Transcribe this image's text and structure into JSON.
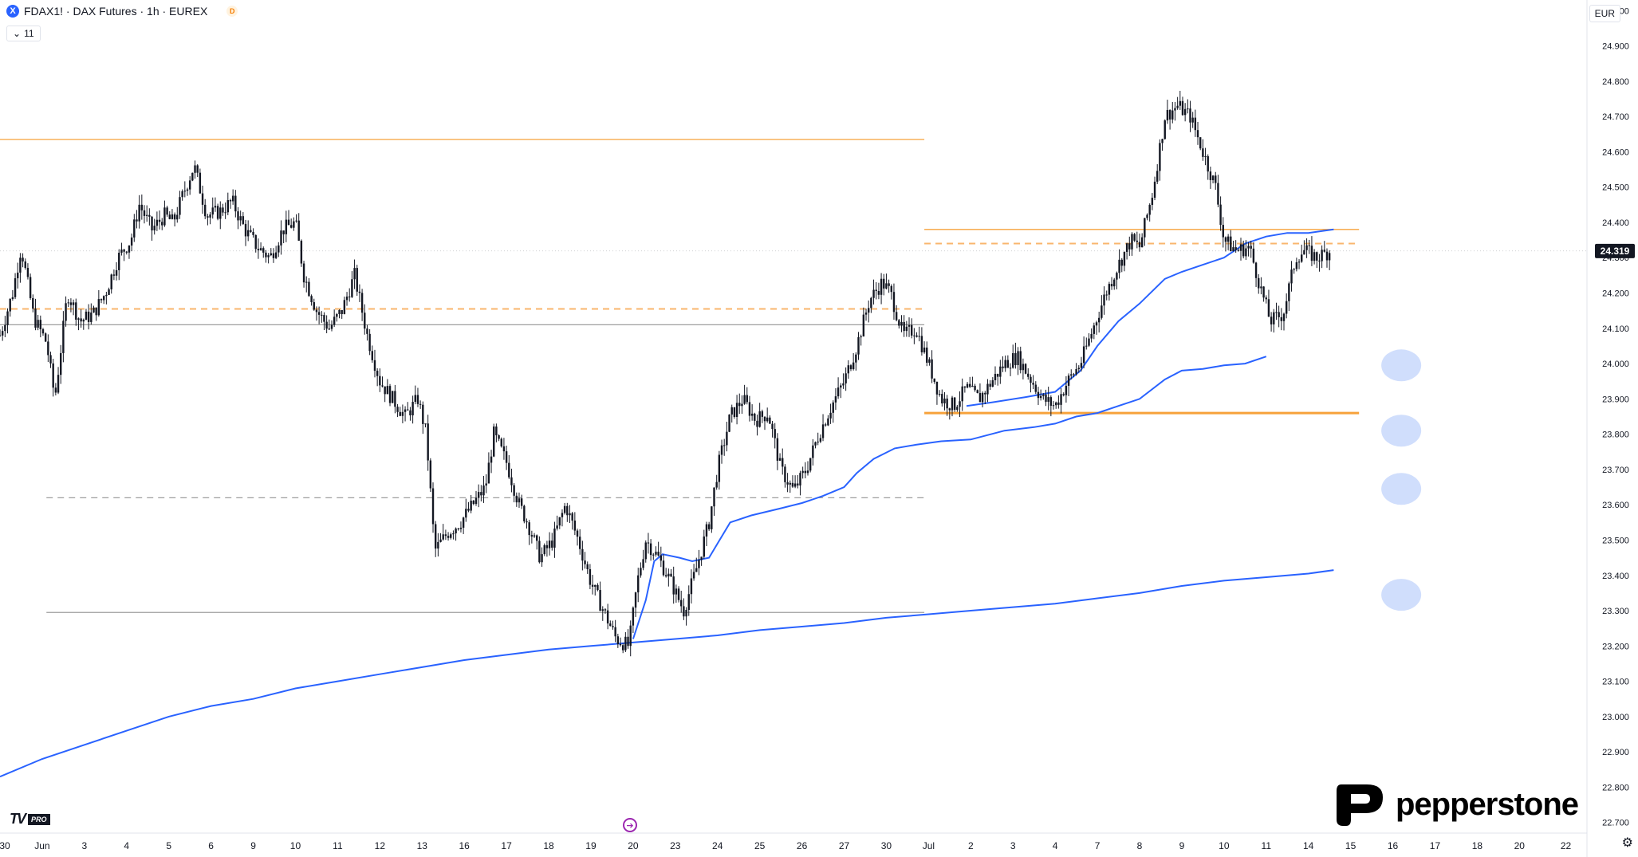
{
  "header": {
    "symbol_icon_letter": "X",
    "title": "FDAX1! · DAX Futures · 1h · EUREX",
    "delay_badge": "D",
    "indicator_count": "11",
    "currency": "EUR"
  },
  "branding": {
    "tradingview": "TV",
    "tradingview_tier": "PRO",
    "broker": "pepperstone"
  },
  "colors": {
    "candle": "#131722",
    "orange_level": "#f7a23b",
    "orange_dashed": "#f9b66d",
    "gray_level": "#9e9e9e",
    "blue_ma": "#2962ff",
    "circle_fill": "#c8d8fb",
    "price_badge": "#131722"
  },
  "chart_data": {
    "type": "candlestick",
    "instrument": "FDAX1!",
    "timeframe": "1h",
    "y_ticks": [
      22700,
      22800,
      22900,
      23000,
      23100,
      23200,
      23300,
      23400,
      23500,
      23600,
      23700,
      23800,
      23900,
      24000,
      24100,
      24200,
      24300,
      24400,
      24500,
      24600,
      24700,
      24800,
      24900,
      25000
    ],
    "y_tick_labels": [
      "22.700",
      "22.800",
      "22.900",
      "23.000",
      "23.100",
      "23.200",
      "23.300",
      "23.400",
      "23.500",
      "23.600",
      "23.700",
      "23.800",
      "23.900",
      "24.000",
      "24.100",
      "24.200",
      "24.300",
      "24.400",
      "24.500",
      "24.600",
      "24.700",
      "24.800",
      "24.900",
      "25.000"
    ],
    "ylim": [
      22670,
      25030
    ],
    "x_ticks": [
      {
        "label": "30",
        "session": 0
      },
      {
        "label": "Jun",
        "session": 1
      },
      {
        "label": "3",
        "session": 2
      },
      {
        "label": "4",
        "session": 3
      },
      {
        "label": "5",
        "session": 4
      },
      {
        "label": "6",
        "session": 5
      },
      {
        "label": "9",
        "session": 6
      },
      {
        "label": "10",
        "session": 7
      },
      {
        "label": "11",
        "session": 8
      },
      {
        "label": "12",
        "session": 9
      },
      {
        "label": "13",
        "session": 10
      },
      {
        "label": "16",
        "session": 11
      },
      {
        "label": "17",
        "session": 12
      },
      {
        "label": "18",
        "session": 13
      },
      {
        "label": "19",
        "session": 14
      },
      {
        "label": "20",
        "session": 15
      },
      {
        "label": "23",
        "session": 16
      },
      {
        "label": "24",
        "session": 17
      },
      {
        "label": "25",
        "session": 18
      },
      {
        "label": "26",
        "session": 19
      },
      {
        "label": "27",
        "session": 20
      },
      {
        "label": "30",
        "session": 21
      },
      {
        "label": "Jul",
        "session": 22
      },
      {
        "label": "2",
        "session": 23
      },
      {
        "label": "3",
        "session": 24
      },
      {
        "label": "4",
        "session": 25
      },
      {
        "label": "7",
        "session": 26
      },
      {
        "label": "8",
        "session": 27
      },
      {
        "label": "9",
        "session": 28
      },
      {
        "label": "10",
        "session": 29
      },
      {
        "label": "11",
        "session": 30
      },
      {
        "label": "14",
        "session": 31
      },
      {
        "label": "15",
        "session": 32
      },
      {
        "label": "16",
        "session": 33
      },
      {
        "label": "17",
        "session": 34
      },
      {
        "label": "18",
        "session": 35
      },
      {
        "label": "20",
        "session": 36
      },
      {
        "label": "22",
        "session": 37.1
      }
    ],
    "x_range": [
      0,
      37.6
    ],
    "last_price": 24319,
    "last_price_label": "24.319",
    "price_path": [
      [
        0.0,
        24080
      ],
      [
        0.3,
        24200
      ],
      [
        0.5,
        24330
      ],
      [
        0.8,
        24130
      ],
      [
        1.1,
        24060
      ],
      [
        1.3,
        23900
      ],
      [
        1.6,
        24200
      ],
      [
        1.9,
        24120
      ],
      [
        2.2,
        24140
      ],
      [
        2.5,
        24200
      ],
      [
        2.8,
        24300
      ],
      [
        3.1,
        24350
      ],
      [
        3.3,
        24450
      ],
      [
        3.6,
        24380
      ],
      [
        3.9,
        24420
      ],
      [
        4.1,
        24400
      ],
      [
        4.4,
        24500
      ],
      [
        4.6,
        24560
      ],
      [
        4.9,
        24420
      ],
      [
        5.2,
        24430
      ],
      [
        5.5,
        24460
      ],
      [
        5.8,
        24380
      ],
      [
        6.1,
        24330
      ],
      [
        6.4,
        24300
      ],
      [
        6.7,
        24380
      ],
      [
        7.0,
        24400
      ],
      [
        7.2,
        24250
      ],
      [
        7.5,
        24150
      ],
      [
        7.8,
        24100
      ],
      [
        8.1,
        24150
      ],
      [
        8.4,
        24250
      ],
      [
        8.7,
        24080
      ],
      [
        9.0,
        23950
      ],
      [
        9.3,
        23900
      ],
      [
        9.6,
        23850
      ],
      [
        9.9,
        23900
      ],
      [
        10.1,
        23800
      ],
      [
        10.3,
        23470
      ],
      [
        10.6,
        23520
      ],
      [
        10.9,
        23550
      ],
      [
        11.2,
        23600
      ],
      [
        11.5,
        23650
      ],
      [
        11.7,
        23800
      ],
      [
        12.0,
        23720
      ],
      [
        12.3,
        23600
      ],
      [
        12.5,
        23550
      ],
      [
        12.8,
        23450
      ],
      [
        13.1,
        23500
      ],
      [
        13.4,
        23600
      ],
      [
        13.7,
        23500
      ],
      [
        14.0,
        23380
      ],
      [
        14.3,
        23300
      ],
      [
        14.6,
        23220
      ],
      [
        14.9,
        23200
      ],
      [
        15.1,
        23380
      ],
      [
        15.3,
        23500
      ],
      [
        15.6,
        23450
      ],
      [
        15.9,
        23380
      ],
      [
        16.2,
        23300
      ],
      [
        16.5,
        23420
      ],
      [
        16.8,
        23550
      ],
      [
        17.0,
        23700
      ],
      [
        17.3,
        23850
      ],
      [
        17.6,
        23900
      ],
      [
        17.9,
        23840
      ],
      [
        18.2,
        23860
      ],
      [
        18.5,
        23700
      ],
      [
        18.8,
        23640
      ],
      [
        19.1,
        23700
      ],
      [
        19.4,
        23800
      ],
      [
        19.7,
        23880
      ],
      [
        20.0,
        23950
      ],
      [
        20.3,
        24050
      ],
      [
        20.6,
        24180
      ],
      [
        20.9,
        24230
      ],
      [
        21.1,
        24200
      ],
      [
        21.4,
        24080
      ],
      [
        21.7,
        24100
      ],
      [
        22.0,
        24000
      ],
      [
        22.3,
        23900
      ],
      [
        22.6,
        23880
      ],
      [
        22.9,
        23930
      ],
      [
        23.2,
        23900
      ],
      [
        23.5,
        23950
      ],
      [
        23.8,
        24000
      ],
      [
        24.1,
        24020
      ],
      [
        24.4,
        23960
      ],
      [
        24.7,
        23900
      ],
      [
        25.0,
        23880
      ],
      [
        25.3,
        23950
      ],
      [
        25.6,
        24000
      ],
      [
        25.9,
        24100
      ],
      [
        26.2,
        24200
      ],
      [
        26.5,
        24280
      ],
      [
        26.8,
        24350
      ],
      [
        27.0,
        24330
      ],
      [
        27.3,
        24480
      ],
      [
        27.6,
        24700
      ],
      [
        27.9,
        24730
      ],
      [
        28.2,
        24700
      ],
      [
        28.5,
        24600
      ],
      [
        28.8,
        24500
      ],
      [
        29.0,
        24350
      ],
      [
        29.3,
        24320
      ],
      [
        29.6,
        24330
      ],
      [
        29.9,
        24200
      ],
      [
        30.1,
        24120
      ],
      [
        30.4,
        24140
      ],
      [
        30.7,
        24300
      ],
      [
        30.9,
        24320
      ],
      [
        31.2,
        24300
      ],
      [
        31.5,
        24319
      ]
    ],
    "ma_short": [
      [
        15.0,
        23220
      ],
      [
        15.3,
        23330
      ],
      [
        15.5,
        23440
      ],
      [
        15.7,
        23460
      ],
      [
        16.1,
        23450
      ],
      [
        16.4,
        23440
      ],
      [
        16.8,
        23450
      ],
      [
        17.0,
        23490
      ],
      [
        17.3,
        23550
      ],
      [
        17.8,
        23570
      ],
      [
        18.5,
        23590
      ],
      [
        19.0,
        23605
      ],
      [
        19.5,
        23625
      ],
      [
        20.0,
        23650
      ],
      [
        20.3,
        23690
      ],
      [
        20.7,
        23730
      ],
      [
        21.2,
        23760
      ],
      [
        21.7,
        23770
      ],
      [
        22.3,
        23780
      ],
      [
        23.0,
        23785
      ],
      [
        23.8,
        23810
      ],
      [
        24.5,
        23820
      ],
      [
        25.0,
        23830
      ],
      [
        25.5,
        23850
      ],
      [
        26.0,
        23860
      ],
      [
        26.5,
        23880
      ],
      [
        27.0,
        23900
      ],
      [
        27.6,
        23955
      ],
      [
        28.0,
        23980
      ],
      [
        28.5,
        23985
      ],
      [
        29.0,
        23995
      ],
      [
        29.5,
        24000
      ],
      [
        30.0,
        24020
      ]
    ],
    "ma_medium": [
      [
        22.9,
        23880
      ],
      [
        23.5,
        23890
      ],
      [
        24.3,
        23905
      ],
      [
        25.0,
        23920
      ],
      [
        25.6,
        23980
      ],
      [
        26.0,
        24050
      ],
      [
        26.5,
        24120
      ],
      [
        27.0,
        24170
      ],
      [
        27.6,
        24240
      ],
      [
        28.0,
        24260
      ],
      [
        28.5,
        24280
      ],
      [
        29.0,
        24300
      ],
      [
        29.5,
        24340
      ],
      [
        30.0,
        24360
      ],
      [
        30.5,
        24370
      ],
      [
        31.0,
        24370
      ],
      [
        31.6,
        24380
      ]
    ],
    "ma_long": [
      [
        0.0,
        22830
      ],
      [
        1.0,
        22880
      ],
      [
        2.0,
        22920
      ],
      [
        3.0,
        22960
      ],
      [
        4.0,
        23000
      ],
      [
        5.0,
        23030
      ],
      [
        6.0,
        23050
      ],
      [
        7.0,
        23080
      ],
      [
        8.0,
        23100
      ],
      [
        9.0,
        23120
      ],
      [
        10.0,
        23140
      ],
      [
        11.0,
        23160
      ],
      [
        12.0,
        23175
      ],
      [
        13.0,
        23190
      ],
      [
        14.0,
        23200
      ],
      [
        15.0,
        23210
      ],
      [
        16.0,
        23220
      ],
      [
        17.0,
        23230
      ],
      [
        18.0,
        23245
      ],
      [
        19.0,
        23255
      ],
      [
        20.0,
        23265
      ],
      [
        21.0,
        23280
      ],
      [
        22.0,
        23290
      ],
      [
        23.0,
        23300
      ],
      [
        24.0,
        23310
      ],
      [
        25.0,
        23320
      ],
      [
        26.0,
        23335
      ],
      [
        27.0,
        23350
      ],
      [
        28.0,
        23370
      ],
      [
        29.0,
        23385
      ],
      [
        30.0,
        23395
      ],
      [
        31.0,
        23405
      ],
      [
        31.6,
        23415
      ]
    ],
    "horizontal_levels": [
      {
        "price": 24635,
        "from": 0,
        "to": 21.9,
        "style": "solid",
        "color": "orange"
      },
      {
        "price": 24380,
        "from": 21.9,
        "to": 32.2,
        "style": "solid",
        "color": "orange"
      },
      {
        "price": 24340,
        "from": 21.9,
        "to": 32.2,
        "style": "dashed",
        "color": "orange"
      },
      {
        "price": 24155,
        "from": 0,
        "to": 21.9,
        "style": "dashed",
        "color": "orange"
      },
      {
        "price": 24110,
        "from": 0,
        "to": 21.9,
        "style": "solid",
        "color": "gray"
      },
      {
        "price": 23620,
        "from": 1.1,
        "to": 21.9,
        "style": "dashed",
        "color": "gray"
      },
      {
        "price": 23295,
        "from": 1.1,
        "to": 21.9,
        "style": "solid",
        "color": "gray"
      },
      {
        "price": 23860,
        "from": 21.9,
        "to": 32.2,
        "style": "solid",
        "color": "orange"
      }
    ],
    "markers": [
      {
        "price": 23995,
        "session": 33.2
      },
      {
        "price": 23810,
        "session": 33.2
      },
      {
        "price": 23645,
        "session": 33.2
      },
      {
        "price": 23345,
        "session": 33.2
      }
    ],
    "legend": "none"
  }
}
